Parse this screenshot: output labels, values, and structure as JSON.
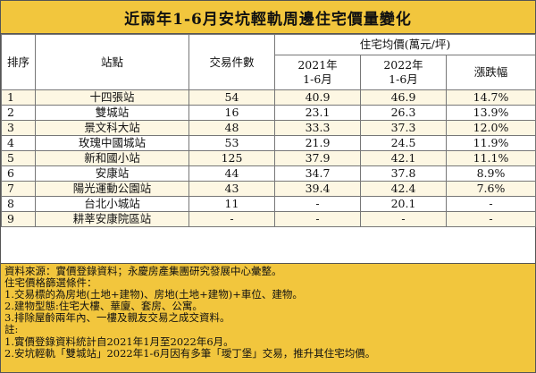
{
  "title": "近兩年1-6月安坑輕軌周邊住宅價量變化",
  "headers": {
    "rank": "排序",
    "station": "站點",
    "transactions": "交易件數",
    "price_group": "住宅均價(萬元/坪)",
    "y2021": "2021年\n1-6月",
    "y2022": "2022年\n1-6月",
    "change": "漲跌幅"
  },
  "rows": [
    {
      "rank": "1",
      "station": "十四張站",
      "transactions": "54",
      "y2021": "40.9",
      "y2022": "46.9",
      "change": "14.7%"
    },
    {
      "rank": "2",
      "station": "雙城站",
      "transactions": "16",
      "y2021": "23.1",
      "y2022": "26.3",
      "change": "13.9%"
    },
    {
      "rank": "3",
      "station": "景文科大站",
      "transactions": "48",
      "y2021": "33.3",
      "y2022": "37.3",
      "change": "12.0%"
    },
    {
      "rank": "4",
      "station": "玫瑰中國城站",
      "transactions": "53",
      "y2021": "21.9",
      "y2022": "24.5",
      "change": "11.9%"
    },
    {
      "rank": "5",
      "station": "新和國小站",
      "transactions": "125",
      "y2021": "37.9",
      "y2022": "42.1",
      "change": "11.1%"
    },
    {
      "rank": "6",
      "station": "安康站",
      "transactions": "44",
      "y2021": "34.7",
      "y2022": "37.8",
      "change": "8.9%"
    },
    {
      "rank": "7",
      "station": "陽光運動公園站",
      "transactions": "43",
      "y2021": "39.4",
      "y2022": "42.4",
      "change": "7.6%"
    },
    {
      "rank": "8",
      "station": "台北小城站",
      "transactions": "11",
      "y2021": "-",
      "y2022": "20.1",
      "change": "-"
    },
    {
      "rank": "9",
      "station": "耕莘安康院區站",
      "transactions": "-",
      "y2021": "-",
      "y2022": "-",
      "change": "-"
    }
  ],
  "notes": [
    "資料來源：實價登錄資料；永慶房產集團研究發展中心彙整。",
    "住宅價格篩選條件：",
    "1.交易標的為房地(土地+建物)、房地(土地+建物)+車位、建物。",
    "2.建物型態:住宅大樓、華廈、套房、公寓。",
    "3.排除屋齡兩年內、一樓及親友交易之成交資料。",
    "註:",
    "1.實價登錄資料統計自2021年1月至2022年6月。",
    "2.安坑輕軌「雙城站」2022年1-6月因有多筆「璦丁堡」交易，推升其住宅均價。"
  ]
}
